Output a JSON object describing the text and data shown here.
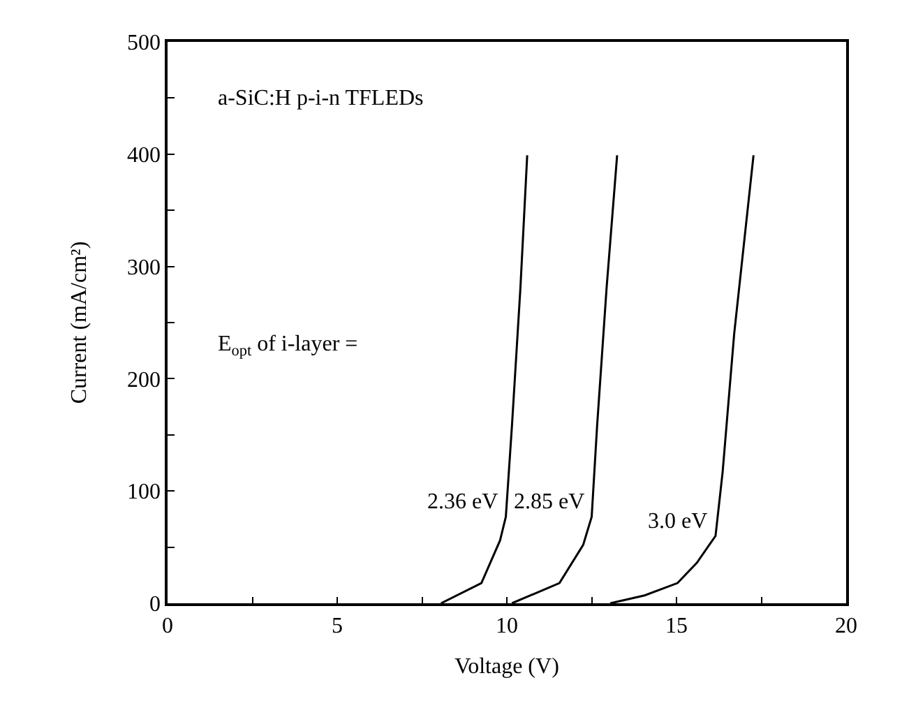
{
  "chart_data": {
    "type": "line",
    "xlabel": "Voltage (V)",
    "ylabel": "Current (mA/cm²)",
    "annotations": [
      "a-SiC:H p-i-n TFLEDs",
      "E$_{opt}$ of i-layer ="
    ],
    "xlim": [
      0,
      20
    ],
    "ylim": [
      0,
      500
    ],
    "xticks": [
      0,
      {
        "value": 2.5,
        "label": null
      },
      5,
      {
        "value": 7.5,
        "label": null
      },
      10,
      {
        "value": 12.5,
        "label": null
      },
      15,
      {
        "value": 17.5,
        "label": null
      },
      20
    ],
    "yticks": [
      0,
      {
        "value": 50,
        "label": null
      },
      100,
      {
        "value": 150,
        "label": null
      },
      200,
      {
        "value": 250,
        "label": null
      },
      300,
      {
        "value": 350,
        "label": null
      },
      400,
      {
        "value": 450,
        "label": null
      },
      500
    ],
    "legend": false,
    "marker": "none",
    "line_style": "solid",
    "series": [
      {
        "name": "2.36 eV",
        "color": "#000000",
        "x": [
          8.06,
          9.25,
          9.8,
          9.97,
          10.15,
          10.4,
          10.6
        ],
        "values": [
          0,
          18,
          56,
          77,
          158,
          281,
          399
        ]
      },
      {
        "name": "2.85 eV",
        "color": "#000000",
        "x": [
          10.15,
          11.55,
          12.25,
          12.5,
          12.66,
          12.94,
          13.25
        ],
        "values": [
          0,
          18,
          52,
          77,
          158,
          281,
          399
        ]
      },
      {
        "name": "3.0 eV",
        "color": "#000000",
        "x": [
          13.05,
          14.06,
          15.03,
          15.6,
          16.15,
          16.36,
          16.7,
          17.27
        ],
        "values": [
          0,
          7,
          18,
          36,
          60,
          117,
          240,
          399
        ]
      }
    ]
  }
}
